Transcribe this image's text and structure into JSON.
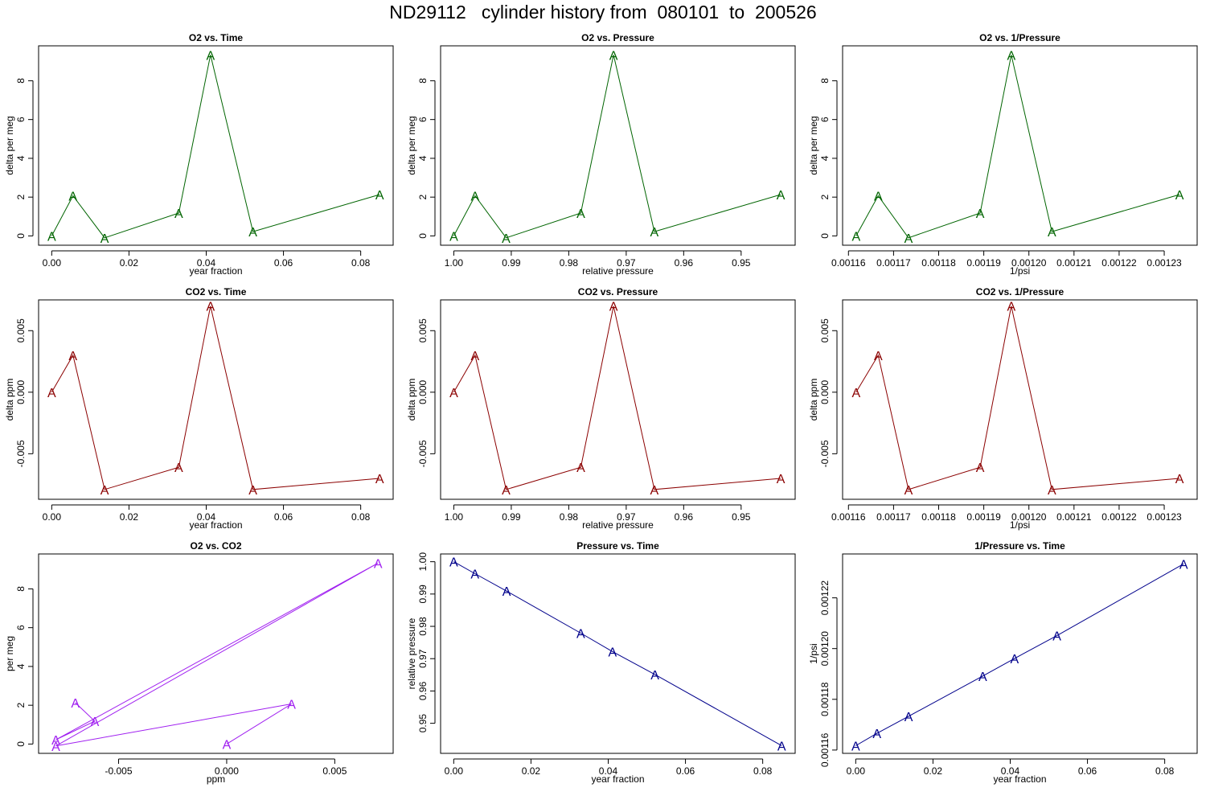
{
  "title": "ND29112   cylinder history from  080101  to  200526",
  "colors": {
    "o2": "#006400",
    "co2": "#8b0000",
    "o2co2": "#a020f0",
    "pressure": "#00008b"
  },
  "marker": "A",
  "chart_data": [
    {
      "type": "line",
      "title": "O2 vs. Time",
      "xlabel": "year fraction",
      "ylabel": "delta per meg",
      "color": "o2",
      "xlim": [
        -0.0034,
        0.0884
      ],
      "ylim": [
        -0.48,
        9.8
      ],
      "xticks": [
        0,
        0.02,
        0.04,
        0.06,
        0.08
      ],
      "xtick_labels": [
        "0.00",
        "0.02",
        "0.04",
        "0.06",
        "0.08"
      ],
      "yticks": [
        0,
        2,
        4,
        6,
        8
      ],
      "ytick_labels": [
        "0",
        "2",
        "4",
        "6",
        "8"
      ],
      "x": [
        0.0,
        0.0055,
        0.0137,
        0.0329,
        0.0411,
        0.0521,
        0.0849
      ],
      "y": [
        0.0,
        2.07,
        -0.1,
        1.18,
        9.33,
        0.22,
        2.13
      ]
    },
    {
      "type": "line",
      "title": "O2 vs. Pressure",
      "xlabel": "relative pressure",
      "ylabel": "delta per meg",
      "color": "o2",
      "xlim": [
        1.0023,
        0.9406
      ],
      "ylim": [
        -0.48,
        9.8
      ],
      "xticks": [
        1.0,
        0.99,
        0.98,
        0.97,
        0.96,
        0.95
      ],
      "xtick_labels": [
        "1.00",
        "0.99",
        "0.98",
        "0.97",
        "0.96",
        "0.95"
      ],
      "yticks": [
        0,
        2,
        4,
        6,
        8
      ],
      "ytick_labels": [
        "0",
        "2",
        "4",
        "6",
        "8"
      ],
      "x": [
        1.0,
        0.9963,
        0.9909,
        0.9779,
        0.9722,
        0.9651,
        0.9431
      ],
      "y": [
        0.0,
        2.07,
        -0.1,
        1.18,
        9.33,
        0.22,
        2.13
      ]
    },
    {
      "type": "line",
      "title": "O2 vs. 1/Pressure",
      "xlabel": "1/psi",
      "ylabel": "delta per meg",
      "color": "o2",
      "xlim": [
        0.0011587,
        0.0012373
      ],
      "ylim": [
        -0.48,
        9.8
      ],
      "xticks": [
        0.00116,
        0.00117,
        0.00118,
        0.00119,
        0.0012,
        0.00121,
        0.00122,
        0.00123
      ],
      "xtick_labels": [
        "0.00116",
        "0.00117",
        "0.00118",
        "0.00119",
        "0.00120",
        "0.00121",
        "0.00122",
        "0.00123"
      ],
      "yticks": [
        0,
        2,
        4,
        6,
        8
      ],
      "ytick_labels": [
        "0",
        "2",
        "4",
        "6",
        "8"
      ],
      "x": [
        0.0011617,
        0.0011666,
        0.0011733,
        0.0011892,
        0.0011961,
        0.0012051,
        0.0012334
      ],
      "y": [
        0.0,
        2.07,
        -0.1,
        1.18,
        9.33,
        0.22,
        2.13
      ]
    },
    {
      "type": "line",
      "title": "CO2 vs. Time",
      "xlabel": "year fraction",
      "ylabel": "delta ppm",
      "color": "co2",
      "xlim": [
        -0.0034,
        0.0884
      ],
      "ylim": [
        -0.0087,
        0.0075
      ],
      "xticks": [
        0,
        0.02,
        0.04,
        0.06,
        0.08
      ],
      "xtick_labels": [
        "0.00",
        "0.02",
        "0.04",
        "0.06",
        "0.08"
      ],
      "yticks": [
        -0.005,
        0.0,
        0.005
      ],
      "ytick_labels": [
        "-0.005",
        "0.000",
        "0.005"
      ],
      "x": [
        0.0,
        0.0055,
        0.0137,
        0.0329,
        0.0411,
        0.0521,
        0.0849
      ],
      "y": [
        0.0,
        0.003,
        -0.0079,
        -0.0061,
        0.007,
        -0.0079,
        -0.007
      ]
    },
    {
      "type": "line",
      "title": "CO2 vs. Pressure",
      "xlabel": "relative pressure",
      "ylabel": "delta ppm",
      "color": "co2",
      "xlim": [
        1.0023,
        0.9406
      ],
      "ylim": [
        -0.0087,
        0.0075
      ],
      "xticks": [
        1.0,
        0.99,
        0.98,
        0.97,
        0.96,
        0.95
      ],
      "xtick_labels": [
        "1.00",
        "0.99",
        "0.98",
        "0.97",
        "0.96",
        "0.95"
      ],
      "yticks": [
        -0.005,
        0.0,
        0.005
      ],
      "ytick_labels": [
        "-0.005",
        "0.000",
        "0.005"
      ],
      "x": [
        1.0,
        0.9963,
        0.9909,
        0.9779,
        0.9722,
        0.9651,
        0.9431
      ],
      "y": [
        0.0,
        0.003,
        -0.0079,
        -0.0061,
        0.007,
        -0.0079,
        -0.007
      ]
    },
    {
      "type": "line",
      "title": "CO2 vs. 1/Pressure",
      "xlabel": "1/psi",
      "ylabel": "delta ppm",
      "color": "co2",
      "xlim": [
        0.0011587,
        0.0012373
      ],
      "ylim": [
        -0.0087,
        0.0075
      ],
      "xticks": [
        0.00116,
        0.00117,
        0.00118,
        0.00119,
        0.0012,
        0.00121,
        0.00122,
        0.00123
      ],
      "xtick_labels": [
        "0.00116",
        "0.00117",
        "0.00118",
        "0.00119",
        "0.00120",
        "0.00121",
        "0.00122",
        "0.00123"
      ],
      "yticks": [
        -0.005,
        0.0,
        0.005
      ],
      "ytick_labels": [
        "-0.005",
        "0.000",
        "0.005"
      ],
      "x": [
        0.0011617,
        0.0011666,
        0.0011733,
        0.0011892,
        0.0011961,
        0.0012051,
        0.0012334
      ],
      "y": [
        0.0,
        0.003,
        -0.0079,
        -0.0061,
        0.007,
        -0.0079,
        -0.007
      ]
    },
    {
      "type": "line",
      "title": "O2 vs. CO2",
      "xlabel": "ppm",
      "ylabel": "per meg",
      "color": "o2co2",
      "xlim": [
        -0.0087,
        0.0077
      ],
      "ylim": [
        -0.48,
        9.8
      ],
      "xticks": [
        -0.005,
        0.0,
        0.005
      ],
      "xtick_labels": [
        "-0.005",
        "0.000",
        "0.005"
      ],
      "yticks": [
        0,
        2,
        4,
        6,
        8
      ],
      "ytick_labels": [
        "0",
        "2",
        "4",
        "6",
        "8"
      ],
      "x": [
        0.0,
        0.003,
        -0.0079,
        0.007,
        -0.0079,
        -0.0061,
        -0.007
      ],
      "y": [
        0.0,
        2.07,
        -0.1,
        9.33,
        0.22,
        1.18,
        2.13
      ]
    },
    {
      "type": "line",
      "title": "Pressure vs. Time",
      "xlabel": "year fraction",
      "ylabel": "relative pressure",
      "color": "pressure",
      "xlim": [
        -0.0034,
        0.0884
      ],
      "ylim": [
        0.9407,
        1.0024
      ],
      "xticks": [
        0,
        0.02,
        0.04,
        0.06,
        0.08
      ],
      "xtick_labels": [
        "0.00",
        "0.02",
        "0.04",
        "0.06",
        "0.08"
      ],
      "yticks": [
        0.95,
        0.96,
        0.97,
        0.98,
        0.99,
        1.0
      ],
      "ytick_labels": [
        "0.95",
        "0.96",
        "0.97",
        "0.98",
        "0.99",
        "1.00"
      ],
      "x": [
        0.0,
        0.0055,
        0.0137,
        0.0329,
        0.0411,
        0.0521,
        0.0849
      ],
      "y": [
        1.0,
        0.9963,
        0.9909,
        0.9779,
        0.9722,
        0.9651,
        0.9431
      ]
    },
    {
      "type": "line",
      "title": "1/Pressure vs. Time",
      "xlabel": "year fraction",
      "ylabel": "1/psi",
      "color": "pressure",
      "xlim": [
        -0.0034,
        0.0884
      ],
      "ylim": [
        0.0011587,
        0.0012373
      ],
      "xticks": [
        0,
        0.02,
        0.04,
        0.06,
        0.08
      ],
      "xtick_labels": [
        "0.00",
        "0.02",
        "0.04",
        "0.06",
        "0.08"
      ],
      "yticks": [
        0.00116,
        0.00118,
        0.0012,
        0.00122
      ],
      "ytick_labels": [
        "0.00116",
        "0.00118",
        "0.00120",
        "0.00122"
      ],
      "x": [
        0.0,
        0.0055,
        0.0137,
        0.0329,
        0.0411,
        0.0521,
        0.0849
      ],
      "y": [
        0.0011617,
        0.0011666,
        0.0011733,
        0.0011892,
        0.0011961,
        0.0012051,
        0.0012334
      ]
    }
  ]
}
